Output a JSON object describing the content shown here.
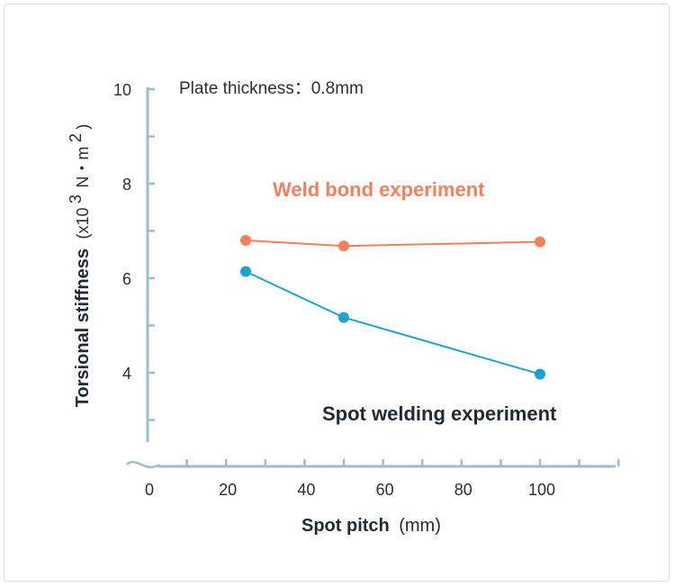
{
  "chart_data": {
    "type": "line",
    "annotation": "Plate thickness：0.8mm",
    "xlabel": "Spot pitch",
    "xlabel_unit": "(mm)",
    "ylabel": "Torsional stiffness",
    "ylabel_unit": {
      "open": "(x10",
      "exp1": "3",
      "mid": "N・m",
      "exp2": "2",
      "close": ")"
    },
    "x_ticks": [
      0,
      20,
      40,
      60,
      80,
      100
    ],
    "y_ticks": [
      4,
      6,
      8,
      10
    ],
    "xlim": [
      0,
      120
    ],
    "ylim": [
      3,
      10
    ],
    "axis_break": true,
    "grid": false,
    "series": [
      {
        "name": "Weld bond experiment",
        "color": "#f37f5b",
        "x": [
          25,
          50,
          100
        ],
        "y": [
          6.8,
          6.68,
          6.77
        ]
      },
      {
        "name": "Spot welding experiment",
        "color": "#1aa3cf",
        "label_color": "#1f2a38",
        "x": [
          25,
          50,
          100
        ],
        "y": [
          6.14,
          5.17,
          3.97
        ]
      }
    ]
  }
}
